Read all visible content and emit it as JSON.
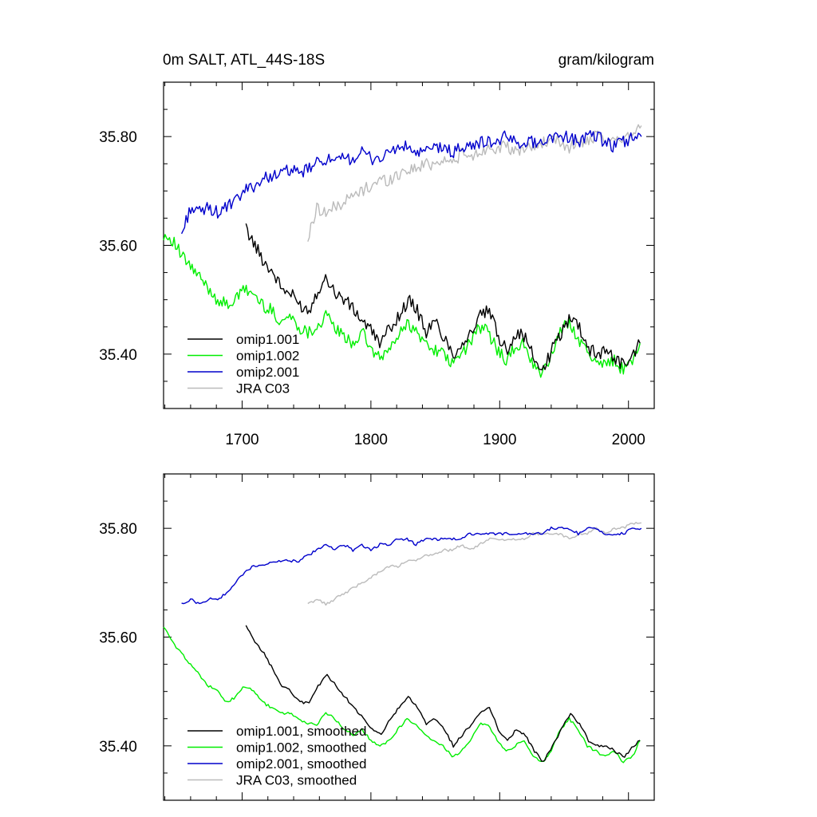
{
  "header": {
    "title": "0m SALT, ATL_44S-18S",
    "units": "gram/kilogram"
  },
  "colors": {
    "omip1_001": "#000000",
    "omip1_002": "#00ee00",
    "omip2_001": "#0000cc",
    "jra_c03": "#bbbbbb"
  },
  "chart_data": [
    {
      "type": "line",
      "panel": "top",
      "xlim": [
        1639,
        2020
      ],
      "ylim": [
        35.3,
        35.9
      ],
      "xticks": [
        1700,
        1800,
        1900,
        2000
      ],
      "xtick_labels": [
        "1700",
        "1800",
        "1900",
        "2000"
      ],
      "yticks": [
        35.4,
        35.6,
        35.8
      ],
      "ytick_labels": [
        "35.40",
        "35.60",
        "35.80"
      ],
      "legend_position": "bottom-left",
      "series": [
        {
          "name": "omip1.001",
          "color": "#000000",
          "x": [
            1703,
            1710,
            1717,
            1724,
            1731,
            1738,
            1745,
            1752,
            1759,
            1766,
            1773,
            1780,
            1787,
            1794,
            1801,
            1808,
            1815,
            1822,
            1829,
            1836,
            1843,
            1850,
            1857,
            1864,
            1871,
            1878,
            1885,
            1892,
            1899,
            1906,
            1913,
            1920,
            1927,
            1934,
            1941,
            1948,
            1955,
            1962,
            1969,
            1976,
            1983,
            1990,
            1997,
            2004,
            2009
          ],
          "y": [
            35.63,
            35.6,
            35.57,
            35.55,
            35.52,
            35.51,
            35.49,
            35.48,
            35.52,
            35.54,
            35.51,
            35.5,
            35.48,
            35.46,
            35.44,
            35.42,
            35.45,
            35.47,
            35.5,
            35.48,
            35.44,
            35.46,
            35.43,
            35.4,
            35.42,
            35.44,
            35.47,
            35.48,
            35.43,
            35.41,
            35.44,
            35.43,
            35.39,
            35.37,
            35.41,
            35.44,
            35.47,
            35.45,
            35.41,
            35.4,
            35.41,
            35.39,
            35.38,
            35.4,
            35.42
          ]
        },
        {
          "name": "omip1.002",
          "color": "#00ee00",
          "x": [
            1639,
            1646,
            1653,
            1660,
            1667,
            1674,
            1681,
            1688,
            1695,
            1702,
            1709,
            1716,
            1723,
            1730,
            1737,
            1744,
            1751,
            1758,
            1765,
            1772,
            1779,
            1786,
            1793,
            1800,
            1807,
            1814,
            1821,
            1828,
            1835,
            1842,
            1849,
            1856,
            1863,
            1870,
            1877,
            1884,
            1891,
            1898,
            1905,
            1912,
            1919,
            1926,
            1933,
            1940,
            1947,
            1954,
            1961,
            1968,
            1975,
            1982,
            1989,
            1996,
            2003,
            2009
          ],
          "y": [
            35.62,
            35.61,
            35.58,
            35.56,
            35.54,
            35.52,
            35.5,
            35.49,
            35.5,
            35.52,
            35.51,
            35.49,
            35.48,
            35.46,
            35.47,
            35.45,
            35.44,
            35.45,
            35.47,
            35.45,
            35.43,
            35.42,
            35.44,
            35.41,
            35.39,
            35.41,
            35.43,
            35.46,
            35.44,
            35.42,
            35.41,
            35.4,
            35.38,
            35.4,
            35.42,
            35.45,
            35.44,
            35.41,
            35.39,
            35.41,
            35.42,
            35.38,
            35.36,
            35.4,
            35.44,
            35.46,
            35.43,
            35.4,
            35.39,
            35.38,
            35.39,
            35.37,
            35.39,
            35.42
          ]
        },
        {
          "name": "omip2.001",
          "color": "#0000cc",
          "x": [
            1653,
            1660,
            1667,
            1674,
            1681,
            1688,
            1695,
            1702,
            1709,
            1716,
            1723,
            1730,
            1737,
            1744,
            1751,
            1758,
            1765,
            1772,
            1779,
            1786,
            1793,
            1800,
            1807,
            1814,
            1821,
            1828,
            1835,
            1842,
            1849,
            1856,
            1863,
            1870,
            1877,
            1884,
            1891,
            1898,
            1905,
            1912,
            1919,
            1926,
            1933,
            1940,
            1947,
            1954,
            1961,
            1968,
            1975,
            1982,
            1989,
            1996,
            2003,
            2010
          ],
          "y": [
            35.62,
            35.67,
            35.66,
            35.67,
            35.66,
            35.67,
            35.68,
            35.7,
            35.71,
            35.72,
            35.73,
            35.73,
            35.74,
            35.73,
            35.74,
            35.75,
            35.76,
            35.75,
            35.76,
            35.76,
            35.77,
            35.76,
            35.76,
            35.77,
            35.78,
            35.78,
            35.77,
            35.77,
            35.78,
            35.78,
            35.77,
            35.78,
            35.78,
            35.79,
            35.79,
            35.79,
            35.8,
            35.79,
            35.79,
            35.79,
            35.79,
            35.8,
            35.8,
            35.8,
            35.79,
            35.8,
            35.8,
            35.79,
            35.78,
            35.79,
            35.8,
            35.8
          ]
        },
        {
          "name": "JRA C03",
          "color": "#bbbbbb",
          "x": [
            1751,
            1758,
            1765,
            1772,
            1779,
            1786,
            1793,
            1800,
            1807,
            1814,
            1821,
            1828,
            1835,
            1842,
            1849,
            1856,
            1863,
            1870,
            1877,
            1884,
            1891,
            1898,
            1905,
            1912,
            1919,
            1926,
            1933,
            1940,
            1947,
            1954,
            1961,
            1968,
            1975,
            1982,
            1989,
            1996,
            2003,
            2010
          ],
          "y": [
            35.61,
            35.67,
            35.66,
            35.67,
            35.68,
            35.69,
            35.7,
            35.71,
            35.72,
            35.72,
            35.73,
            35.74,
            35.74,
            35.75,
            35.75,
            35.76,
            35.75,
            35.77,
            35.76,
            35.77,
            35.78,
            35.78,
            35.78,
            35.77,
            35.78,
            35.78,
            35.79,
            35.79,
            35.79,
            35.78,
            35.79,
            35.79,
            35.8,
            35.79,
            35.79,
            35.8,
            35.81,
            35.82
          ]
        }
      ]
    },
    {
      "type": "line",
      "panel": "bottom",
      "xlim": [
        1639,
        2020
      ],
      "ylim": [
        35.3,
        35.9
      ],
      "xticks": [
        1700,
        1800,
        1900,
        2000
      ],
      "yticks": [
        35.4,
        35.6,
        35.8
      ],
      "ytick_labels": [
        "35.40",
        "35.60",
        "35.80"
      ],
      "legend_position": "bottom-left",
      "series": [
        {
          "name": "omip1.001, smoothed",
          "color": "#000000",
          "x": [
            1703,
            1710,
            1717,
            1724,
            1731,
            1738,
            1745,
            1752,
            1759,
            1766,
            1773,
            1780,
            1787,
            1794,
            1801,
            1808,
            1815,
            1822,
            1829,
            1836,
            1843,
            1850,
            1857,
            1864,
            1871,
            1878,
            1885,
            1892,
            1899,
            1906,
            1913,
            1920,
            1927,
            1934,
            1941,
            1948,
            1955,
            1962,
            1969,
            1976,
            1983,
            1990,
            1997,
            2004,
            2009
          ],
          "y": [
            35.62,
            35.59,
            35.57,
            35.54,
            35.51,
            35.5,
            35.48,
            35.48,
            35.51,
            35.53,
            35.51,
            35.49,
            35.47,
            35.45,
            35.43,
            35.42,
            35.45,
            35.47,
            35.49,
            35.47,
            35.44,
            35.45,
            35.43,
            35.4,
            35.42,
            35.44,
            35.46,
            35.47,
            35.43,
            35.41,
            35.43,
            35.42,
            35.39,
            35.37,
            35.4,
            35.43,
            35.46,
            35.44,
            35.41,
            35.4,
            35.4,
            35.39,
            35.38,
            35.4,
            35.41
          ]
        },
        {
          "name": "omip1.002, smoothed",
          "color": "#00ee00",
          "x": [
            1639,
            1646,
            1653,
            1660,
            1667,
            1674,
            1681,
            1688,
            1695,
            1702,
            1709,
            1716,
            1723,
            1730,
            1737,
            1744,
            1751,
            1758,
            1765,
            1772,
            1779,
            1786,
            1793,
            1800,
            1807,
            1814,
            1821,
            1828,
            1835,
            1842,
            1849,
            1856,
            1863,
            1870,
            1877,
            1884,
            1891,
            1898,
            1905,
            1912,
            1919,
            1926,
            1933,
            1940,
            1947,
            1954,
            1961,
            1968,
            1975,
            1982,
            1989,
            1996,
            2003,
            2009
          ],
          "y": [
            35.62,
            35.59,
            35.57,
            35.55,
            35.53,
            35.51,
            35.5,
            35.48,
            35.49,
            35.51,
            35.5,
            35.48,
            35.47,
            35.46,
            35.46,
            35.45,
            35.44,
            35.44,
            35.46,
            35.45,
            35.43,
            35.42,
            35.43,
            35.41,
            35.4,
            35.41,
            35.43,
            35.45,
            35.44,
            35.42,
            35.41,
            35.4,
            35.38,
            35.39,
            35.41,
            35.44,
            35.44,
            35.41,
            35.39,
            35.4,
            35.41,
            35.38,
            35.37,
            35.39,
            35.43,
            35.45,
            35.43,
            35.4,
            35.39,
            35.38,
            35.39,
            35.37,
            35.38,
            35.41
          ]
        },
        {
          "name": "omip2.001, smoothed",
          "color": "#0000cc",
          "x": [
            1653,
            1660,
            1667,
            1674,
            1681,
            1688,
            1695,
            1702,
            1709,
            1716,
            1723,
            1730,
            1737,
            1744,
            1751,
            1758,
            1765,
            1772,
            1779,
            1786,
            1793,
            1800,
            1807,
            1814,
            1821,
            1828,
            1835,
            1842,
            1849,
            1856,
            1863,
            1870,
            1877,
            1884,
            1891,
            1898,
            1905,
            1912,
            1919,
            1926,
            1933,
            1940,
            1947,
            1954,
            1961,
            1968,
            1975,
            1982,
            1989,
            1996,
            2003,
            2010
          ],
          "y": [
            35.66,
            35.67,
            35.66,
            35.67,
            35.67,
            35.68,
            35.7,
            35.72,
            35.73,
            35.73,
            35.74,
            35.74,
            35.74,
            35.74,
            35.75,
            35.76,
            35.77,
            35.76,
            35.77,
            35.76,
            35.77,
            35.76,
            35.77,
            35.77,
            35.78,
            35.78,
            35.77,
            35.78,
            35.78,
            35.78,
            35.78,
            35.78,
            35.79,
            35.79,
            35.79,
            35.79,
            35.79,
            35.79,
            35.79,
            35.79,
            35.79,
            35.8,
            35.8,
            35.8,
            35.79,
            35.8,
            35.8,
            35.79,
            35.79,
            35.79,
            35.8,
            35.8
          ]
        },
        {
          "name": "JRA C03, smoothed",
          "color": "#bbbbbb",
          "x": [
            1751,
            1758,
            1765,
            1772,
            1779,
            1786,
            1793,
            1800,
            1807,
            1814,
            1821,
            1828,
            1835,
            1842,
            1849,
            1856,
            1863,
            1870,
            1877,
            1884,
            1891,
            1898,
            1905,
            1912,
            1919,
            1926,
            1933,
            1940,
            1947,
            1954,
            1961,
            1968,
            1975,
            1982,
            1989,
            1996,
            2003,
            2010
          ],
          "y": [
            35.66,
            35.67,
            35.66,
            35.67,
            35.68,
            35.69,
            35.7,
            35.71,
            35.72,
            35.73,
            35.73,
            35.74,
            35.74,
            35.75,
            35.75,
            35.76,
            35.76,
            35.77,
            35.76,
            35.77,
            35.78,
            35.78,
            35.78,
            35.78,
            35.78,
            35.79,
            35.79,
            35.79,
            35.79,
            35.78,
            35.79,
            35.79,
            35.8,
            35.79,
            35.8,
            35.8,
            35.81,
            35.81
          ]
        }
      ]
    }
  ]
}
